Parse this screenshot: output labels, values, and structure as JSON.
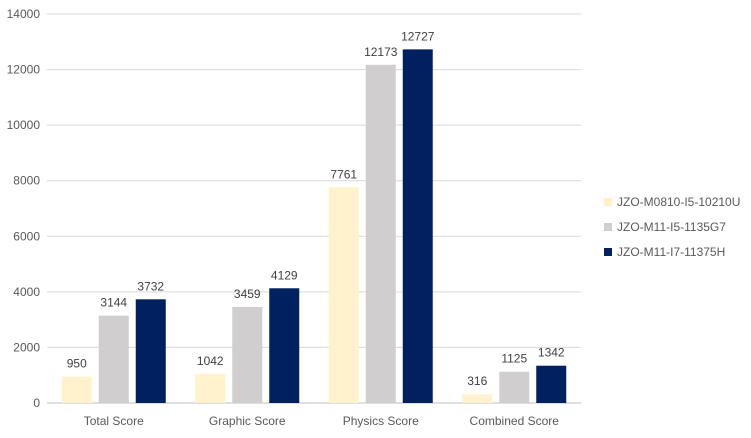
{
  "chart_data": {
    "type": "bar",
    "title": "",
    "xlabel": "",
    "ylabel": "",
    "categories": [
      "Total Score",
      "Graphic Score",
      "Physics Score",
      "Combined Score"
    ],
    "ylim": [
      0,
      14000
    ],
    "yticks": [
      0,
      2000,
      4000,
      6000,
      8000,
      10000,
      12000,
      14000
    ],
    "grid": true,
    "legend_position": "right",
    "series": [
      {
        "name": "JZO-M0810-I5-10210U",
        "color": "#FFF2CC",
        "values": [
          950,
          1042,
          7761,
          316
        ]
      },
      {
        "name": "JZO-M11-I5-1135G7",
        "color": "#D0CECE",
        "values": [
          3144,
          3459,
          12173,
          1125
        ]
      },
      {
        "name": "JZO-M11-I7-11375H",
        "color": "#002060",
        "values": [
          3732,
          4129,
          12727,
          1342
        ]
      }
    ]
  }
}
